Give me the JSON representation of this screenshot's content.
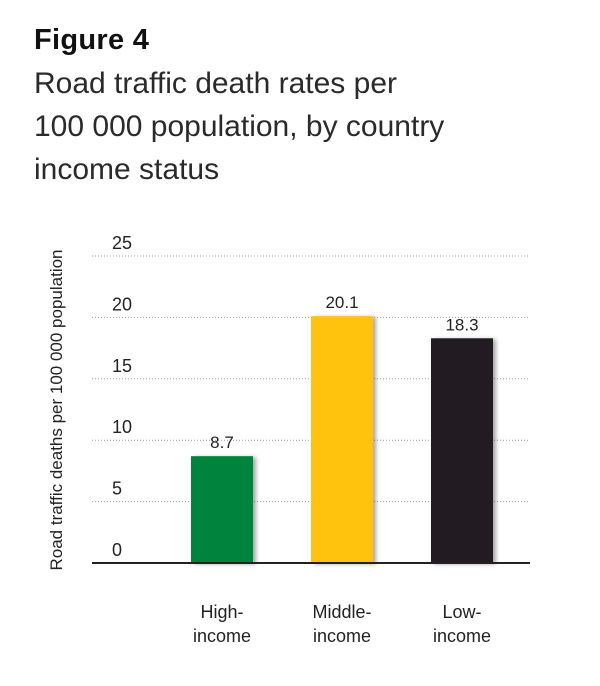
{
  "figure_label": "Figure 4",
  "title_lines": [
    "Road traffic death rates per",
    "100 000 population, by country",
    "income status"
  ],
  "chart_data": {
    "type": "bar",
    "title": "Road traffic death rates per 100 000 population, by country income status",
    "ylabel": "Road traffic deaths per 100 000 population",
    "xlabel": "",
    "ylim": [
      0,
      25
    ],
    "yticks": [
      0,
      5,
      10,
      15,
      20,
      25
    ],
    "grid": true,
    "categories": [
      [
        "High-",
        "income"
      ],
      [
        "Middle-",
        "income"
      ],
      [
        "Low-",
        "income"
      ]
    ],
    "values": [
      8.7,
      20.1,
      18.3
    ],
    "data_labels": [
      "8.7",
      "20.1",
      "18.3"
    ],
    "colors": [
      "#00843d",
      "#ffc20e",
      "#231f20"
    ]
  }
}
